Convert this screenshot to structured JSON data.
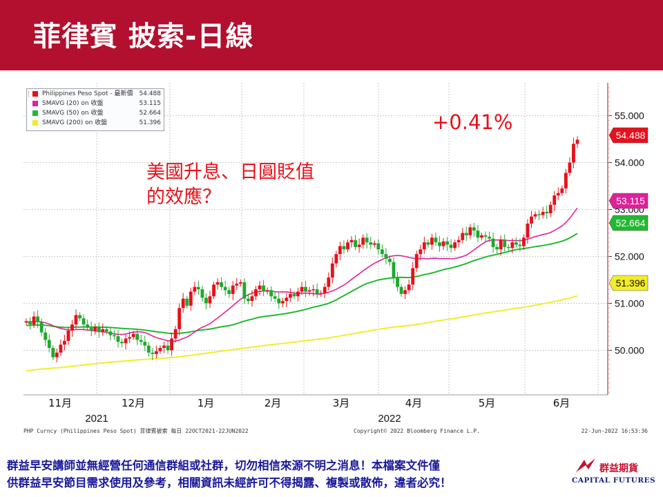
{
  "header": {
    "title": "菲律賓 披索-日線",
    "bg_color": "#b30f2e"
  },
  "annotations": {
    "pct_change": "+0.41%",
    "comment_line1": "美國升息、日圓貶值",
    "comment_line2": "的效應？",
    "color": "#e8101a"
  },
  "footer": {
    "disclaimer_line1": "群益早安講師並無經營任何通信群組或社群，切勿相信來源不明之消息！本檔案文件僅",
    "disclaimer_line2": "供群益早安節目需求使用及參考，相關資訊未經許可不得揭露、複製或散佈，違者必究！",
    "logo_cn": "群益期貨",
    "logo_en": "CAPITAL FUTURES"
  },
  "chart_data": {
    "type": "candlestick",
    "title": "",
    "source_left": "PHP Curncy (Philippines Peso Spot)  菲律賓披索   每日 22OCT2021-22JUN2022",
    "source_center": "Copyright© 2022 Bloomberg Finance L.P.",
    "source_right": "22-Jun-2022 16:53:36",
    "x_tick_labels": [
      "11月",
      "12月",
      "1月",
      "2月",
      "3月",
      "4月",
      "5月",
      "6月"
    ],
    "year_labels": [
      "2021",
      "2022"
    ],
    "y_ticks": [
      "50.000",
      "51.000",
      "52.000",
      "53.000",
      "54.000",
      "55.000"
    ],
    "ylim": [
      49.05,
      55.7
    ],
    "grid": true,
    "legend": [
      {
        "name": "Philippines Peso Spot - 最新價",
        "value": "54.488",
        "color": "#e8101a"
      },
      {
        "name": "SMAVG (20)  on 收盤",
        "value": "53.115",
        "color": "#e0209a"
      },
      {
        "name": "SMAVG (50)  on 收盤",
        "value": "52.664",
        "color": "#22b830"
      },
      {
        "name": "SMAVG (200)  on 收盤",
        "value": "51.396",
        "color": "#f2ec2a"
      }
    ],
    "last_value_tags": [
      {
        "label": "54.488",
        "value": 54.488,
        "color": "#e8101a"
      },
      {
        "label": "53.115",
        "value": 53.115,
        "color": "#e0209a"
      },
      {
        "label": "52.664",
        "value": 52.664,
        "color": "#22b830"
      },
      {
        "label": "51.396",
        "value": 51.396,
        "color": "#f2ec2a"
      }
    ],
    "closes": [
      50.62,
      50.55,
      50.72,
      50.6,
      50.38,
      50.22,
      50.05,
      49.85,
      49.95,
      50.12,
      50.2,
      50.42,
      50.55,
      50.75,
      50.68,
      50.55,
      50.48,
      50.42,
      50.5,
      50.4,
      50.45,
      50.4,
      50.32,
      50.3,
      50.18,
      50.15,
      50.25,
      50.28,
      50.35,
      50.22,
      50.18,
      50.1,
      49.95,
      49.92,
      49.98,
      50.05,
      50.1,
      50.0,
      50.25,
      50.45,
      50.9,
      51.1,
      50.95,
      51.25,
      51.35,
      51.3,
      51.12,
      51.0,
      51.15,
      51.4,
      51.45,
      51.35,
      51.28,
      51.2,
      51.38,
      51.42,
      51.45,
      51.1,
      51.05,
      51.15,
      51.3,
      51.38,
      51.25,
      51.28,
      51.15,
      51.1,
      51.0,
      51.05,
      51.12,
      51.2,
      51.15,
      51.25,
      51.35,
      51.25,
      51.28,
      51.3,
      51.2,
      51.22,
      51.35,
      51.55,
      51.85,
      52.05,
      52.22,
      52.15,
      52.3,
      52.35,
      52.2,
      52.25,
      52.4,
      52.3,
      52.25,
      52.28,
      52.15,
      52.05,
      51.95,
      51.88,
      51.55,
      51.35,
      51.2,
      51.28,
      51.4,
      51.75,
      52.05,
      52.15,
      52.3,
      52.25,
      52.4,
      52.3,
      52.22,
      52.32,
      52.25,
      52.18,
      52.3,
      52.35,
      52.5,
      52.45,
      52.62,
      52.55,
      52.4,
      52.45,
      52.42,
      52.38,
      52.2,
      52.15,
      52.35,
      52.2,
      52.18,
      52.3,
      52.25,
      52.22,
      52.4,
      52.7,
      52.85,
      52.9,
      52.88,
      52.95,
      52.92,
      53.1,
      53.3,
      53.35,
      53.45,
      53.78,
      54.0,
      54.4,
      54.488
    ]
  }
}
